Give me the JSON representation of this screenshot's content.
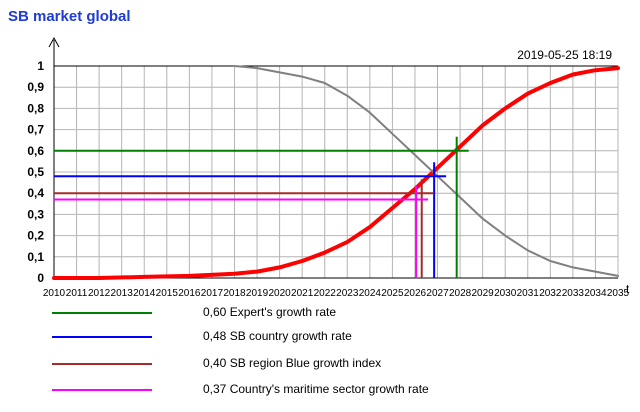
{
  "chart_data": {
    "type": "line",
    "title": "SB market global",
    "timestamp": "2019-05-25 18:19",
    "x_ticks": [
      "2010",
      "2011",
      "2012",
      "2013",
      "2014",
      "2015",
      "2016",
      "2017",
      "2018",
      "2019",
      "2020",
      "2021",
      "2022",
      "2023",
      "2024",
      "2025",
      "2026",
      "2027",
      "2028",
      "2029",
      "2030",
      "2031",
      "2032",
      "2033",
      "2034",
      "2035"
    ],
    "y_ticks": [
      "0",
      "0,1",
      "0,2",
      "0,3",
      "0,4",
      "0,5",
      "0,6",
      "0,7",
      "0,8",
      "0,9",
      "1"
    ],
    "xlim": [
      2010,
      2035
    ],
    "ylim": [
      0,
      1
    ],
    "grid": true,
    "x_axis_label": "t",
    "series": [
      {
        "color": "#ff0000",
        "x": [
          2010,
          2012,
          2014,
          2016,
          2018,
          2019,
          2020,
          2021,
          2022,
          2023,
          2024,
          2025,
          2026,
          2027,
          2028,
          2029,
          2030,
          2031,
          2032,
          2033,
          2034,
          2035
        ],
        "values": [
          0.0,
          0.0,
          0.005,
          0.01,
          0.02,
          0.03,
          0.05,
          0.08,
          0.12,
          0.17,
          0.24,
          0.33,
          0.42,
          0.52,
          0.62,
          0.72,
          0.8,
          0.87,
          0.92,
          0.96,
          0.98,
          0.99
        ]
      },
      {
        "color": "#808080",
        "x": [
          2018,
          2019,
          2020,
          2021,
          2022,
          2023,
          2024,
          2025,
          2026,
          2027,
          2028,
          2029,
          2030,
          2031,
          2032,
          2033,
          2034,
          2035
        ],
        "values": [
          1.0,
          0.99,
          0.97,
          0.95,
          0.92,
          0.86,
          0.78,
          0.68,
          0.58,
          0.48,
          0.38,
          0.28,
          0.2,
          0.13,
          0.08,
          0.05,
          0.03,
          0.01
        ]
      }
    ],
    "markers": [
      {
        "value": 0.6,
        "x": 2027.85,
        "color": "#008000",
        "label": "0,60 Expert's growth rate"
      },
      {
        "value": 0.48,
        "x": 2026.85,
        "color": "#0000ff",
        "label": "0,48 SB country growth rate"
      },
      {
        "value": 0.4,
        "x": 2026.3,
        "color": "#a52a2a",
        "label": "0,40 SB region Blue growth index"
      },
      {
        "value": 0.37,
        "x": 2026.05,
        "color": "#ff00ff",
        "label": "0,37 Country's maritime sector growth rate"
      }
    ]
  }
}
